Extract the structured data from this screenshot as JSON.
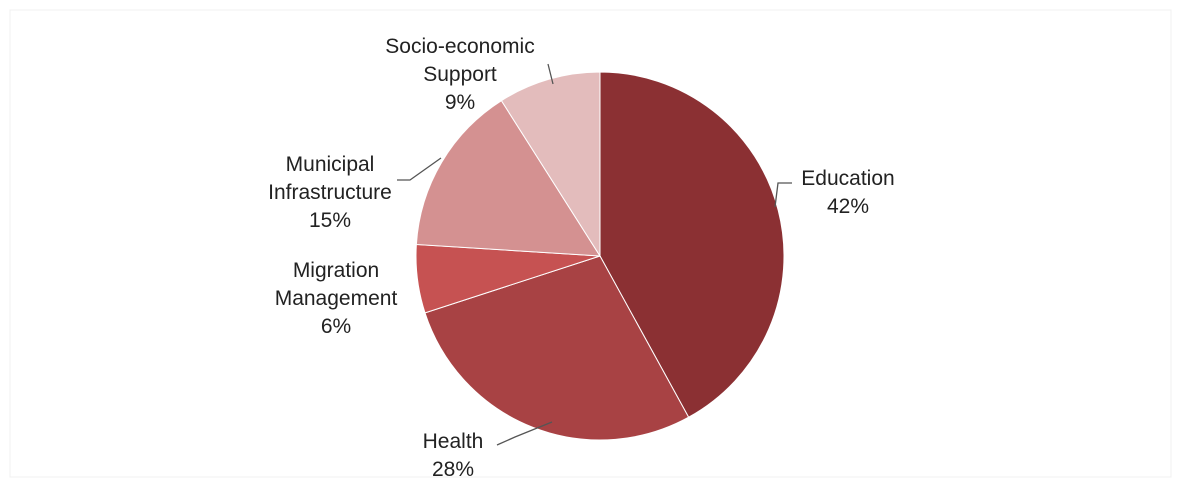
{
  "chart_data": {
    "type": "pie",
    "title": "",
    "start_angle_deg": -90,
    "direction": "clockwise",
    "slices": [
      {
        "label": [
          "Education"
        ],
        "pct_label": "42%",
        "value": 42,
        "color": "#8b3033"
      },
      {
        "label": [
          "Health"
        ],
        "pct_label": "28%",
        "value": 28,
        "color": "#a84244"
      },
      {
        "label": [
          "Migration",
          "Management"
        ],
        "pct_label": "6%",
        "value": 6,
        "color": "#c65252"
      },
      {
        "label": [
          "Municipal",
          "Infrastructure"
        ],
        "pct_label": "15%",
        "value": 15,
        "color": "#d49191"
      },
      {
        "label": [
          "Socio-economic",
          "Support"
        ],
        "pct_label": "9%",
        "value": 9,
        "color": "#e3bcbc"
      }
    ]
  }
}
